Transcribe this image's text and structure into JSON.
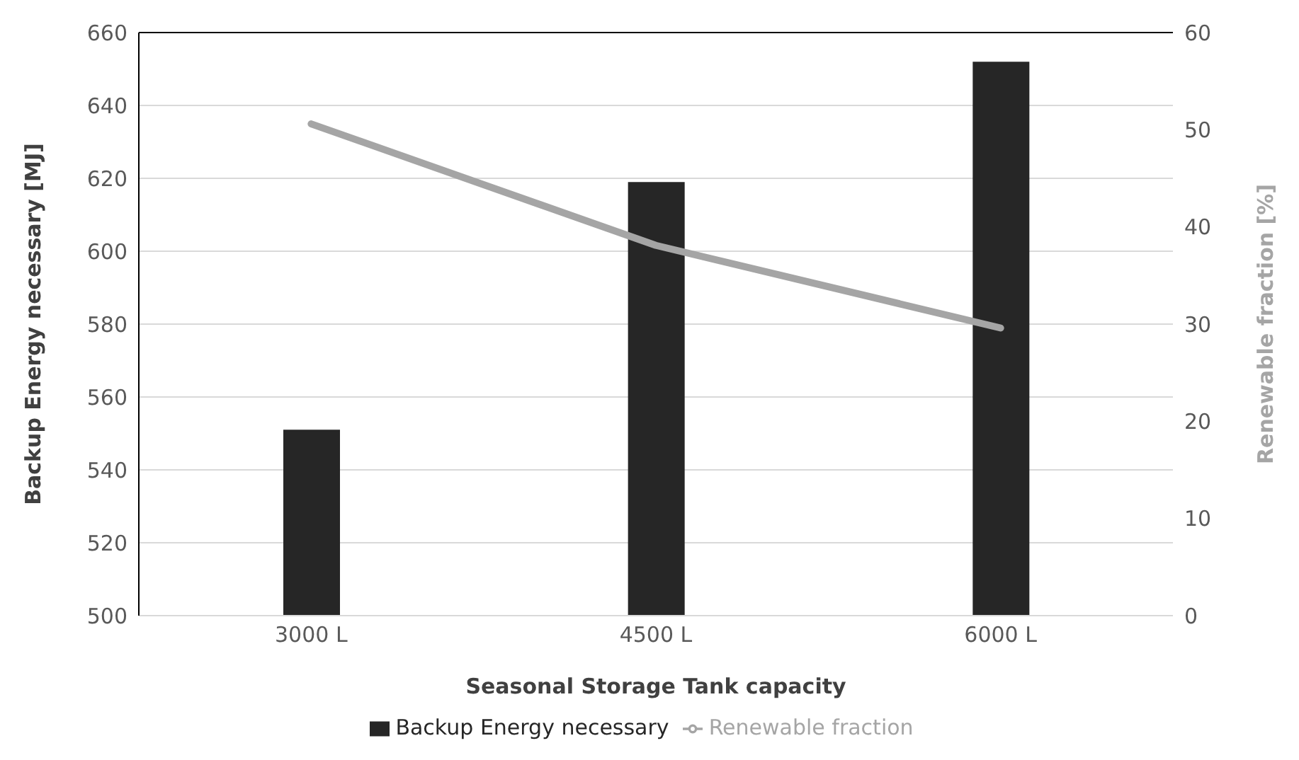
{
  "chart_data": {
    "type": "bar",
    "categories": [
      "3000 L",
      "4500 L",
      "6000 L"
    ],
    "series": [
      {
        "name": "Backup Energy necessary",
        "color": "#262626",
        "values": [
          551,
          619,
          652
        ]
      },
      {
        "name": "Renewable fraction",
        "type": "line",
        "axis": "y2",
        "color": "#a5a5a5",
        "values": [
          50.6,
          38.1,
          29.6
        ]
      }
    ],
    "xlabel": "Seasonal Storage Tank capacity",
    "ylabel": "Backup Energy necessary [MJ]",
    "y2label": "Renewable fraction [%]",
    "ylim": [
      500,
      660
    ],
    "yticks": [
      500,
      520,
      540,
      560,
      580,
      600,
      620,
      640,
      660
    ],
    "y2lim": [
      0,
      60
    ],
    "y2ticks": [
      0,
      10,
      20,
      30,
      40,
      50,
      60
    ],
    "grid": "y",
    "legend": "bottom",
    "marker": "none",
    "line_style": "solid"
  }
}
